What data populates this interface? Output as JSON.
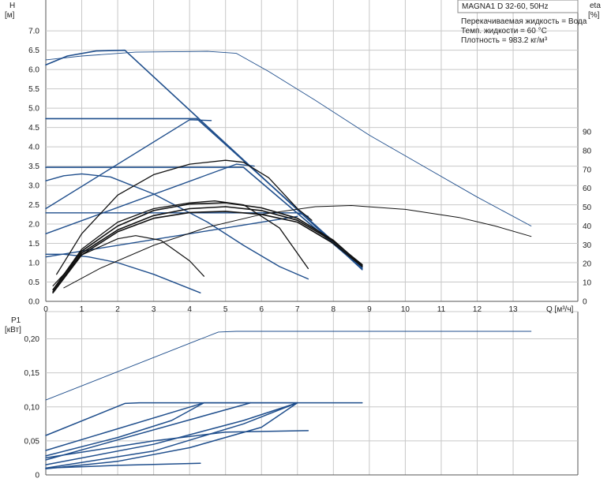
{
  "info": {
    "title": "MAGNA1 D 32-60, 50Hz",
    "lines": [
      "Перекачиваемая жидкость = Вода",
      "Темп. жидкости = 60 °C",
      "Плотность = 983.2 кг/м³"
    ]
  },
  "labels": {
    "h_axis": "H",
    "h_unit": "[м]",
    "eta_axis": "eta",
    "eta_unit": "[%]",
    "q_axis": "Q [м³/ч]",
    "p_axis": "P1",
    "p_unit": "[кВт]"
  },
  "colors": {
    "blue": "#1f4e8c",
    "black": "#111111",
    "grid": "#c8c8c8"
  },
  "chart_data": [
    {
      "type": "line",
      "name": "head-eta",
      "x_ticks": [
        0,
        1,
        2,
        3,
        4,
        5,
        6,
        7,
        8,
        9,
        10,
        11,
        12,
        13
      ],
      "y_ticks": [
        "0.0",
        "0.5",
        "1.0",
        "1.5",
        "2.0",
        "2.5",
        "3.0",
        "3.5",
        "4.0",
        "4.5",
        "5.0",
        "5.5",
        "6.0",
        "6.5",
        "7.0"
      ],
      "eta_ticks": [
        0,
        10,
        20,
        30,
        40,
        50,
        60,
        70,
        80,
        90
      ],
      "xlim": [
        0,
        14.8
      ],
      "ylim": [
        0,
        7.8
      ],
      "eta_lim": [
        0,
        90
      ],
      "grid": true,
      "series": [
        {
          "color": "blue",
          "width": 1.6,
          "points": [
            [
              0,
              6.12
            ],
            [
              0.6,
              6.35
            ],
            [
              1.4,
              6.48
            ],
            [
              2.2,
              6.5
            ],
            [
              8.8,
              0.82
            ]
          ]
        },
        {
          "color": "blue",
          "width": 1.6,
          "points": [
            [
              0,
              4.73
            ],
            [
              4.2,
              4.73
            ],
            [
              8.8,
              0.88
            ]
          ]
        },
        {
          "color": "blue",
          "width": 1.6,
          "points": [
            [
              0,
              3.47
            ],
            [
              5.5,
              3.47
            ],
            [
              8.8,
              0.85
            ]
          ]
        },
        {
          "color": "blue",
          "width": 1.4,
          "points": [
            [
              0,
              2.29
            ],
            [
              7.0,
              2.29
            ],
            [
              7.3,
              2.2
            ]
          ]
        },
        {
          "color": "blue",
          "width": 1.4,
          "points": [
            [
              0,
              2.4
            ],
            [
              4.0,
              4.7
            ],
            [
              4.6,
              4.68
            ]
          ]
        },
        {
          "color": "blue",
          "width": 1.4,
          "points": [
            [
              0,
              1.75
            ],
            [
              5.3,
              3.55
            ],
            [
              5.8,
              3.5
            ]
          ]
        },
        {
          "color": "blue",
          "width": 1.4,
          "points": [
            [
              0,
              1.15
            ],
            [
              7.0,
              2.2
            ]
          ]
        },
        {
          "color": "blue",
          "width": 1.4,
          "points": [
            [
              0,
              3.12
            ],
            [
              0.5,
              3.25
            ],
            [
              1.0,
              3.3
            ],
            [
              1.8,
              3.22
            ],
            [
              3.0,
              2.78
            ],
            [
              4.5,
              2.05
            ],
            [
              5.5,
              1.45
            ],
            [
              6.5,
              0.9
            ],
            [
              7.3,
              0.58
            ]
          ]
        },
        {
          "color": "blue",
          "width": 1.4,
          "points": [
            [
              0,
              1.22
            ],
            [
              0.5,
              1.22
            ],
            [
              1.2,
              1.15
            ],
            [
              2.0,
              1.0
            ],
            [
              3.0,
              0.7
            ],
            [
              4.3,
              0.22
            ]
          ]
        },
        {
          "color": "blue",
          "width": 0.9,
          "points": [
            [
              0,
              6.25
            ],
            [
              1.0,
              6.35
            ],
            [
              2.5,
              6.45
            ],
            [
              4.5,
              6.47
            ],
            [
              5.3,
              6.42
            ],
            [
              6.2,
              5.95
            ],
            [
              7.5,
              5.2
            ],
            [
              9.0,
              4.3
            ],
            [
              10.5,
              3.5
            ],
            [
              12.0,
              2.7
            ],
            [
              13.5,
              1.95
            ]
          ]
        },
        {
          "color": "black",
          "width": 1.0,
          "points": [
            [
              0.5,
              0.35
            ],
            [
              1.5,
              0.85
            ],
            [
              3,
              1.45
            ],
            [
              4.5,
              1.92
            ],
            [
              6,
              2.25
            ],
            [
              7.5,
              2.45
            ],
            [
              8.5,
              2.48
            ],
            [
              10,
              2.38
            ],
            [
              11.5,
              2.17
            ],
            [
              12.5,
              1.95
            ],
            [
              13.5,
              1.68
            ]
          ]
        },
        {
          "color": "black",
          "width": 1.3,
          "points": [
            [
              0.3,
              0.7
            ],
            [
              1.0,
              1.75
            ],
            [
              2.0,
              2.75
            ],
            [
              3.0,
              3.28
            ],
            [
              4.0,
              3.55
            ],
            [
              5.0,
              3.65
            ],
            [
              5.5,
              3.6
            ],
            [
              6.2,
              3.2
            ],
            [
              7.0,
              2.4
            ],
            [
              7.4,
              2.1
            ]
          ]
        },
        {
          "color": "black",
          "width": 1.6,
          "points": [
            [
              0.2,
              0.25
            ],
            [
              1.0,
              1.25
            ],
            [
              2.0,
              1.85
            ],
            [
              3.0,
              2.22
            ],
            [
              4.0,
              2.4
            ],
            [
              5.0,
              2.45
            ],
            [
              6.0,
              2.35
            ],
            [
              7.0,
              2.1
            ],
            [
              8.0,
              1.55
            ],
            [
              8.8,
              0.95
            ]
          ]
        },
        {
          "color": "black",
          "width": 1.6,
          "points": [
            [
              0.2,
              0.3
            ],
            [
              1.0,
              1.3
            ],
            [
              2.0,
              1.95
            ],
            [
              3.0,
              2.35
            ],
            [
              4.0,
              2.52
            ],
            [
              5.0,
              2.55
            ],
            [
              6.0,
              2.42
            ],
            [
              7.0,
              2.15
            ],
            [
              8.0,
              1.58
            ],
            [
              8.8,
              0.92
            ]
          ]
        },
        {
          "color": "black",
          "width": 1.6,
          "points": [
            [
              0.2,
              0.22
            ],
            [
              1.0,
              1.2
            ],
            [
              2.0,
              1.8
            ],
            [
              3.0,
              2.15
            ],
            [
              4.0,
              2.3
            ],
            [
              5.0,
              2.33
            ],
            [
              6.0,
              2.25
            ],
            [
              7.0,
              2.05
            ],
            [
              8.0,
              1.5
            ],
            [
              8.8,
              0.9
            ]
          ]
        },
        {
          "color": "black",
          "width": 1.3,
          "points": [
            [
              0.2,
              0.3
            ],
            [
              1.0,
              1.35
            ],
            [
              2.0,
              2.05
            ],
            [
              3.0,
              2.4
            ],
            [
              4.0,
              2.55
            ],
            [
              4.7,
              2.6
            ],
            [
              5.5,
              2.5
            ],
            [
              6.5,
              1.9
            ],
            [
              7.3,
              0.85
            ]
          ]
        },
        {
          "color": "black",
          "width": 1.2,
          "points": [
            [
              0.2,
              0.4
            ],
            [
              1.0,
              1.2
            ],
            [
              2.0,
              1.62
            ],
            [
              2.5,
              1.7
            ],
            [
              3.2,
              1.58
            ],
            [
              4.0,
              1.05
            ],
            [
              4.4,
              0.65
            ]
          ]
        }
      ]
    },
    {
      "type": "line",
      "name": "power",
      "x_ticks": [
        0,
        1,
        2,
        3,
        4,
        5,
        6,
        7,
        8,
        9,
        10,
        11,
        12,
        13
      ],
      "y_ticks": [
        "0",
        "0,05",
        "0,10",
        "0,15",
        "0,20"
      ],
      "xlim": [
        0,
        14.8
      ],
      "ylim": [
        0,
        0.24
      ],
      "grid": true,
      "series": [
        {
          "color": "blue",
          "width": 0.9,
          "points": [
            [
              0,
              0.11
            ],
            [
              4.8,
              0.21
            ],
            [
              5.3,
              0.211
            ],
            [
              13.5,
              0.211
            ]
          ]
        },
        {
          "color": "blue",
          "width": 1.5,
          "points": [
            [
              0,
              0.058
            ],
            [
              2.2,
              0.105
            ],
            [
              2.6,
              0.106
            ],
            [
              8.8,
              0.106
            ]
          ]
        },
        {
          "color": "blue",
          "width": 1.5,
          "points": [
            [
              0,
              0.036
            ],
            [
              4.4,
              0.106
            ]
          ]
        },
        {
          "color": "blue",
          "width": 1.5,
          "points": [
            [
              0,
              0.028
            ],
            [
              2.0,
              0.055
            ],
            [
              3.5,
              0.08
            ],
            [
              4.4,
              0.106
            ],
            [
              5.7,
              0.106
            ]
          ]
        },
        {
          "color": "blue",
          "width": 1.5,
          "points": [
            [
              0,
              0.022
            ],
            [
              5.7,
              0.106
            ],
            [
              7.0,
              0.106
            ]
          ]
        },
        {
          "color": "blue",
          "width": 1.5,
          "points": [
            [
              0,
              0.015
            ],
            [
              3.0,
              0.045
            ],
            [
              5.5,
              0.08
            ],
            [
              7.0,
              0.106
            ]
          ]
        },
        {
          "color": "blue",
          "width": 1.5,
          "points": [
            [
              0,
              0.01
            ],
            [
              3.0,
              0.035
            ],
            [
              5.5,
              0.075
            ],
            [
              7.0,
              0.106
            ]
          ]
        },
        {
          "color": "blue",
          "width": 1.5,
          "points": [
            [
              0,
              0.009
            ],
            [
              2.0,
              0.02
            ],
            [
              4.0,
              0.04
            ],
            [
              6.0,
              0.07
            ],
            [
              7.0,
              0.106
            ]
          ]
        },
        {
          "color": "blue",
          "width": 1.5,
          "points": [
            [
              0,
              0.025
            ],
            [
              3.0,
              0.05
            ],
            [
              5.0,
              0.063
            ],
            [
              7.3,
              0.065
            ]
          ]
        },
        {
          "color": "blue",
          "width": 1.5,
          "points": [
            [
              0,
              0.01
            ],
            [
              2.0,
              0.014
            ],
            [
              4.3,
              0.017
            ]
          ]
        }
      ]
    }
  ]
}
